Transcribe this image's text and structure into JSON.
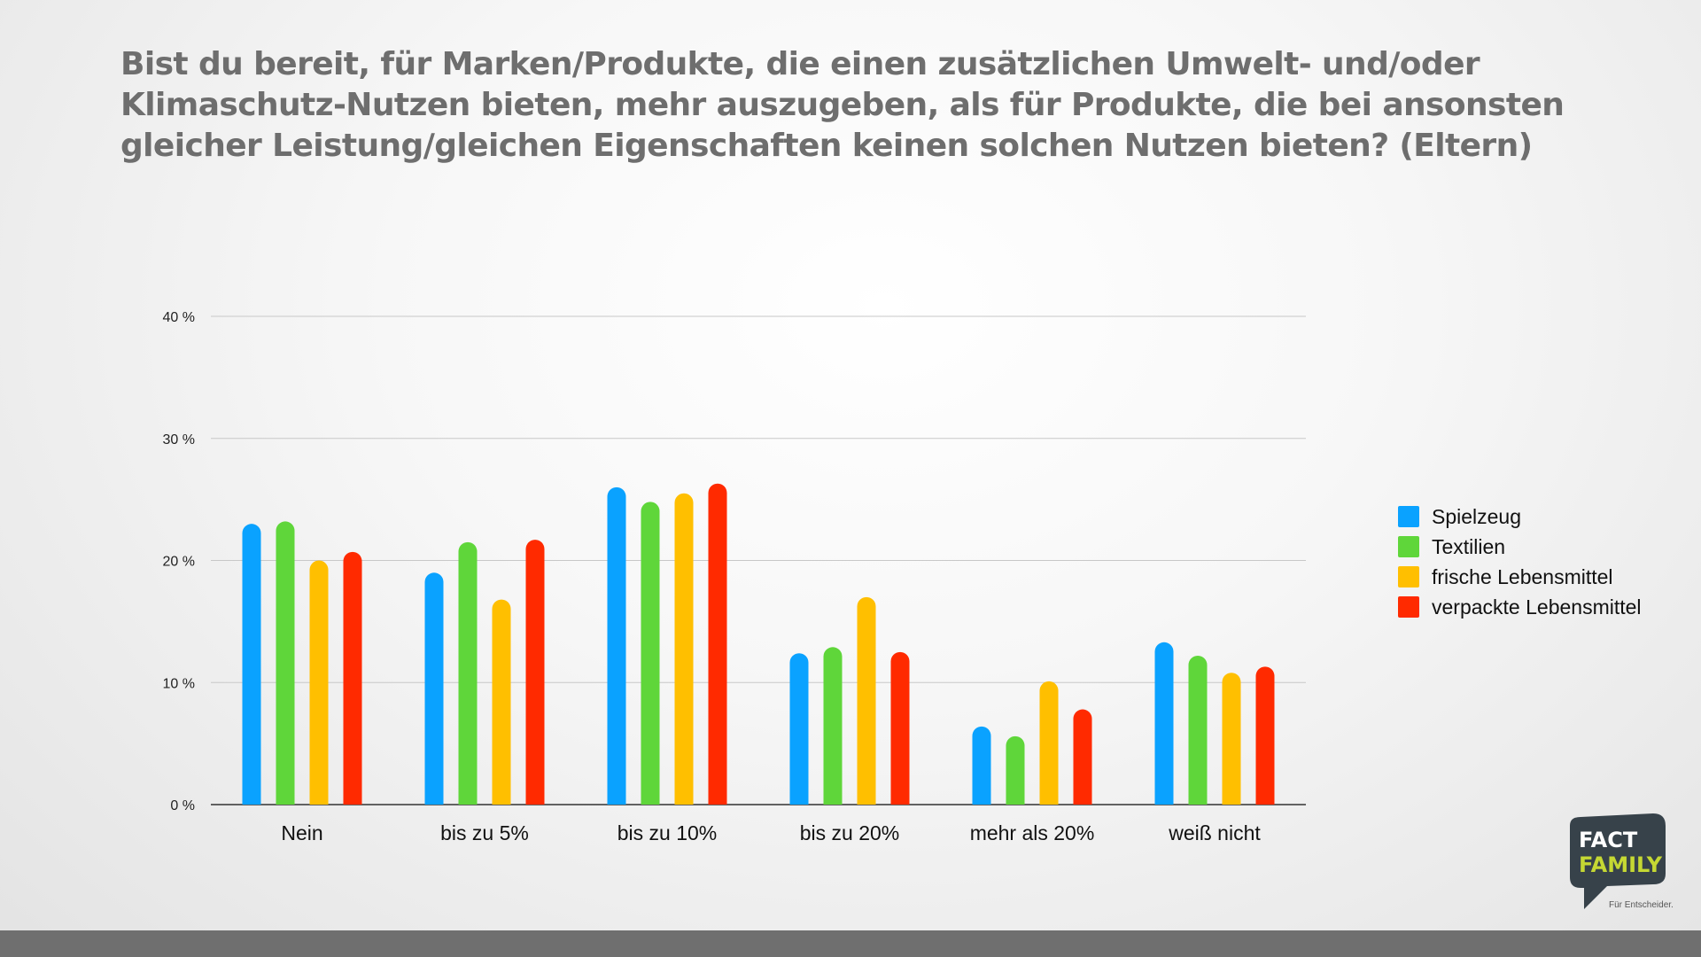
{
  "title_lines": [
    "Bist du bereit, für Marken/Produkte, die einen zusätzlichen Umwelt- und/oder",
    "Klimaschutz-Nutzen bieten, mehr auszugeben, als für Produkte, die bei ansonsten",
    "gleicher Leistung/gleichen Eigenschaften keinen solchen Nutzen bieten? (Eltern)"
  ],
  "chart_data": {
    "type": "bar",
    "title": "Bist du bereit, für Marken/Produkte, die einen zusätzlichen Umwelt- und/oder Klimaschutz-Nutzen bieten, mehr auszugeben, als für Produkte, die bei ansonsten gleicher Leistung/gleichen Eigenschaften keinen solchen Nutzen bieten? (Eltern)",
    "categories": [
      "Nein",
      "bis zu 5%",
      "bis zu 10%",
      "bis zu 20%",
      "mehr als 20%",
      "weiß nicht"
    ],
    "ylim": [
      0,
      40
    ],
    "yticks": [
      0,
      10,
      20,
      30,
      40
    ],
    "ytick_labels": [
      "0 %",
      "10 %",
      "20 %",
      "30 %",
      "40 %"
    ],
    "grid": true,
    "legend_position": "right",
    "series": [
      {
        "name": "Spielzeug",
        "color": "#0aa2ff",
        "values": [
          23.0,
          19.0,
          26.0,
          12.4,
          6.4,
          13.3
        ]
      },
      {
        "name": "Textilien",
        "color": "#5fd63a",
        "values": [
          23.2,
          21.5,
          24.8,
          12.9,
          5.6,
          12.2
        ]
      },
      {
        "name": "frische Lebensmittel",
        "color": "#ffbf00",
        "values": [
          20.0,
          16.8,
          25.5,
          17.0,
          10.1,
          10.8
        ]
      },
      {
        "name": "verpackte Lebensmittel",
        "color": "#ff2a00",
        "values": [
          20.7,
          21.7,
          26.3,
          12.5,
          7.8,
          11.3
        ]
      }
    ]
  },
  "logo": {
    "line1": "FACT",
    "line2": "FAMILY",
    "tagline": "Für Entscheider."
  }
}
